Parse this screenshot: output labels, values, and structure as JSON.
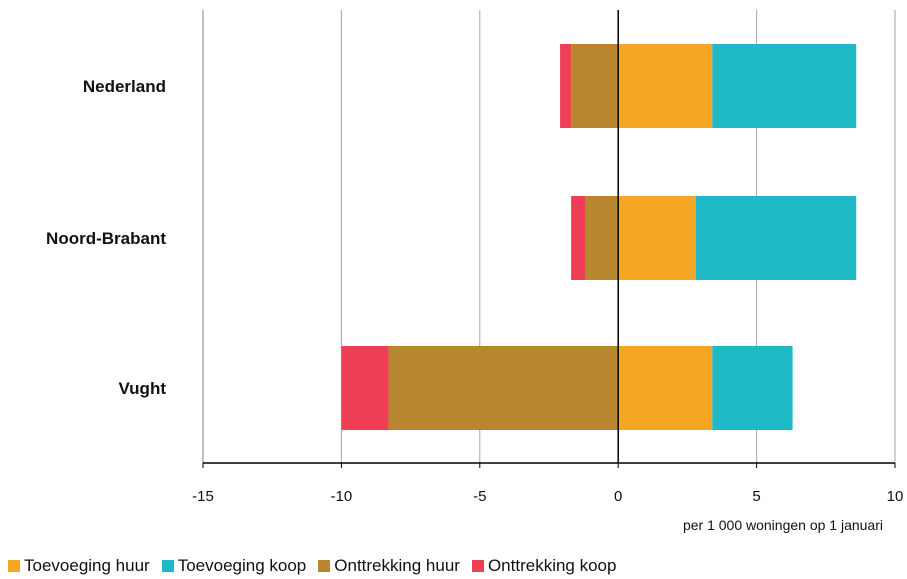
{
  "chart_data": {
    "type": "bar",
    "orientation": "horizontal",
    "stacked": true,
    "categories": [
      "Nederland",
      "Noord-Brabant",
      "Vught"
    ],
    "series": [
      {
        "name": "Toevoeging huur",
        "color": "#f5a623",
        "values": [
          3.4,
          2.8,
          3.4
        ]
      },
      {
        "name": "Toevoeging koop",
        "color": "#1fbac6",
        "values": [
          5.2,
          5.8,
          2.9
        ]
      },
      {
        "name": "Onttrekking huur",
        "color": "#b8862f",
        "values": [
          -1.7,
          -1.2,
          -8.3
        ]
      },
      {
        "name": "Onttrekking koop",
        "color": "#ee3f57",
        "values": [
          -0.4,
          -0.5,
          -1.7
        ]
      }
    ],
    "xlim": [
      -15,
      10
    ],
    "xticks": [
      -15,
      -10,
      -5,
      0,
      5,
      10
    ],
    "xtick_labels": [
      "-15",
      "-10",
      "-5",
      "0",
      "5",
      "10"
    ],
    "xlabel": "per 1 000 woningen op 1 januari",
    "grid": "vertical",
    "legend": "bottom"
  }
}
